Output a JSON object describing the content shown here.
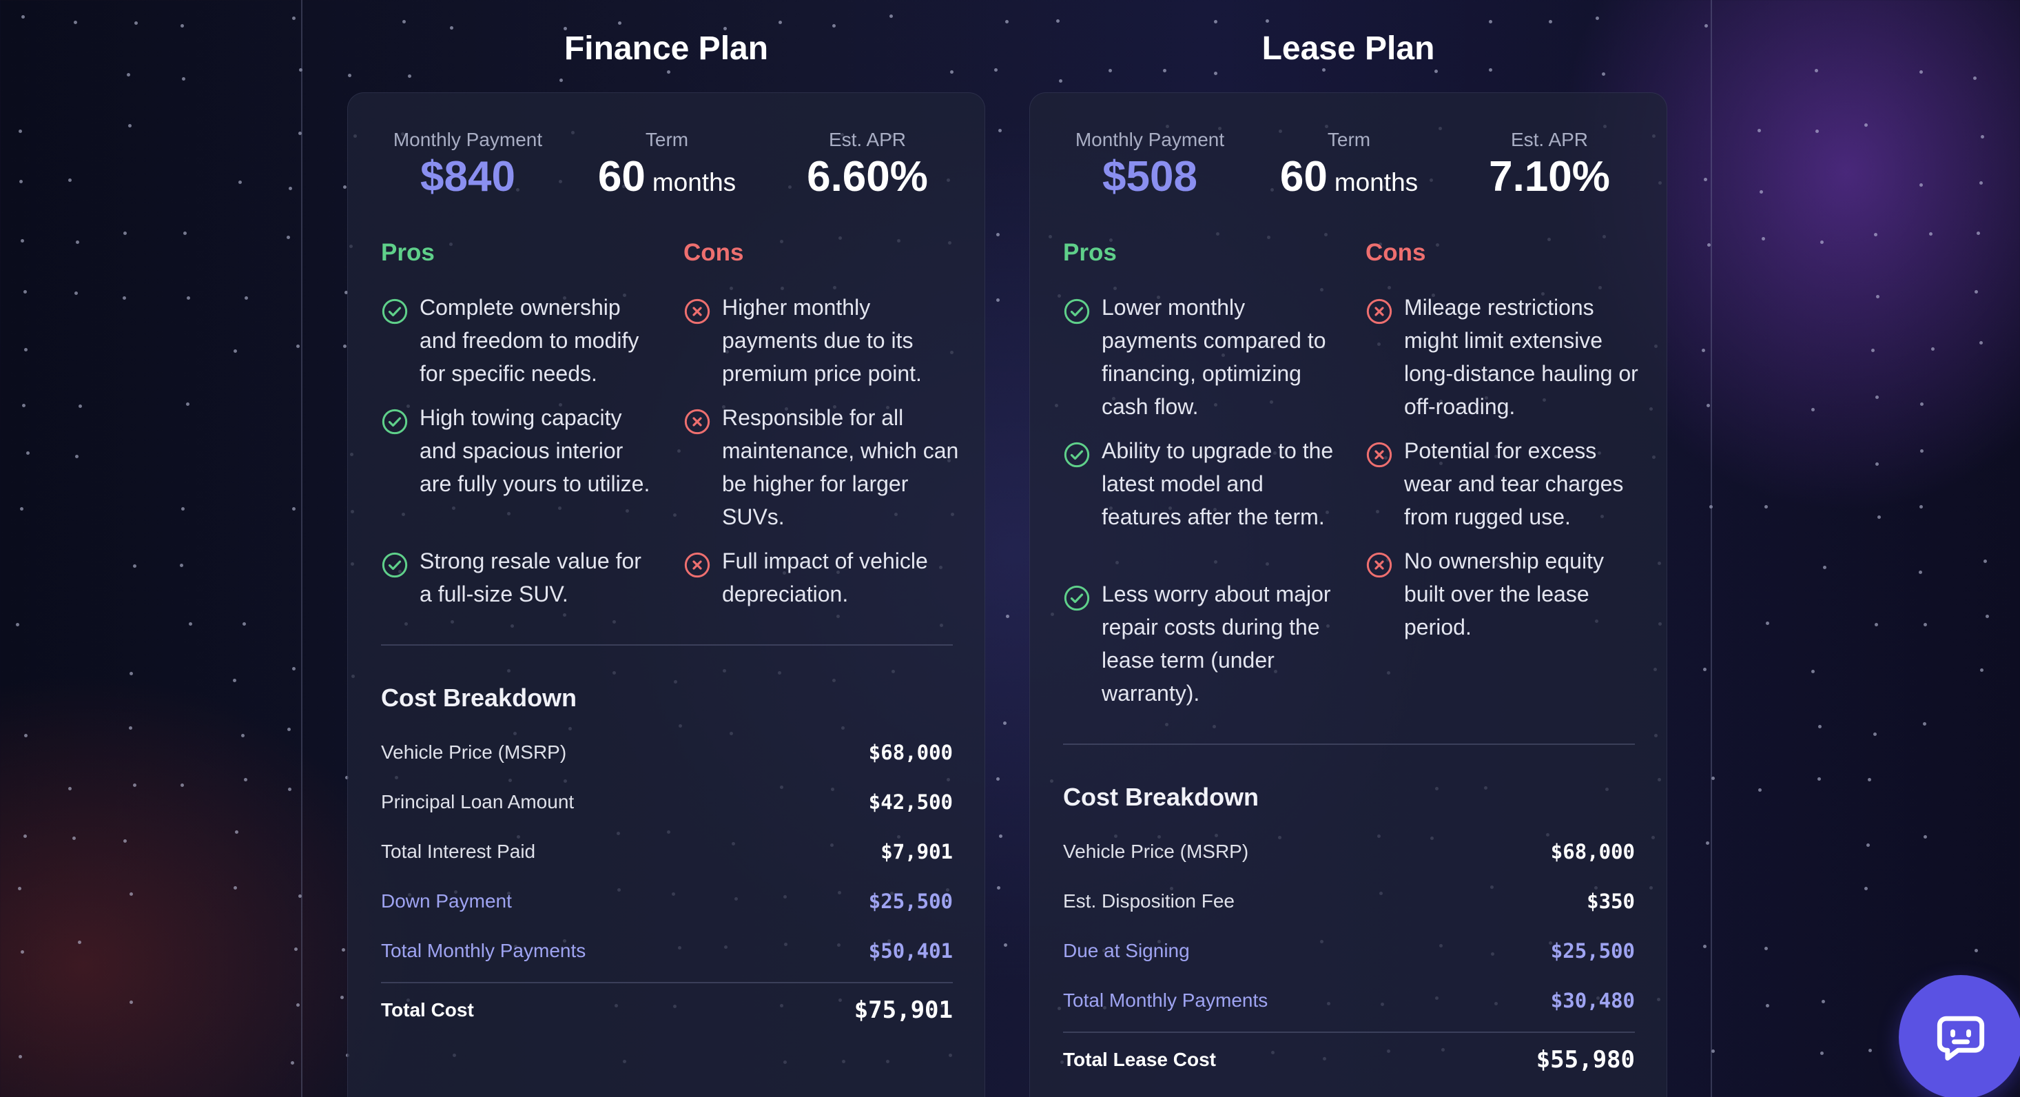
{
  "plans": [
    {
      "title": "Finance Plan",
      "stats": [
        {
          "label": "Monthly Payment",
          "value": "$840",
          "unit": ""
        },
        {
          "label": "Term",
          "value": "60",
          "unit": "months"
        },
        {
          "label": "Est. APR",
          "value": "6.60%",
          "unit": ""
        }
      ],
      "pros_heading": "Pros",
      "cons_heading": "Cons",
      "pros": [
        "Complete ownership and freedom to modify for specific needs.",
        "High towing capacity and spacious interior are fully yours to utilize.",
        "Strong resale value for a full-size SUV."
      ],
      "cons": [
        "Higher monthly payments due to its premium price point.",
        "Responsible for all maintenance, which can be higher for larger SUVs.",
        "Full impact of vehicle depreciation."
      ],
      "cost_title": "Cost Breakdown",
      "rows": [
        {
          "label": "Vehicle Price (MSRP)",
          "value": "$68,000"
        },
        {
          "label": "Principal Loan Amount",
          "value": "$42,500"
        },
        {
          "label": "Total Interest Paid",
          "value": "$7,901"
        },
        {
          "label": "Down Payment",
          "value": "$25,500"
        },
        {
          "label": "Total Monthly Payments",
          "value": "$50,401"
        }
      ],
      "total": {
        "label": "Total Cost",
        "value": "$75,901"
      }
    },
    {
      "title": "Lease Plan",
      "stats": [
        {
          "label": "Monthly Payment",
          "value": "$508",
          "unit": ""
        },
        {
          "label": "Term",
          "value": "60",
          "unit": "months"
        },
        {
          "label": "Est. APR",
          "value": "7.10%",
          "unit": ""
        }
      ],
      "pros_heading": "Pros",
      "cons_heading": "Cons",
      "pros": [
        "Lower monthly payments compared to financing, optimizing cash flow.",
        "Ability to upgrade to the latest model and features after the term.",
        "Less worry about major repair costs during the lease term (under warranty)."
      ],
      "cons": [
        "Mileage restrictions might limit extensive long-distance hauling or off-roading.",
        "Potential for excess wear and tear charges from rugged use.",
        "No ownership equity built over the lease period."
      ],
      "cost_title": "Cost Breakdown",
      "rows": [
        {
          "label": "Vehicle Price (MSRP)",
          "value": "$68,000"
        },
        {
          "label": "Est. Disposition Fee",
          "value": "$350"
        },
        {
          "label": "Due at Signing",
          "value": "$25,500"
        },
        {
          "label": "Total Monthly Payments",
          "value": "$30,480"
        }
      ],
      "total": {
        "label": "Total Lease Cost",
        "value": "$55,980"
      }
    }
  ],
  "colors": {
    "accent": "#8a8ff0",
    "pros": "#5fd08a",
    "cons": "#ee6f6f",
    "highlight_row": "#9fa4f2",
    "chat_button": "#5a52e3"
  },
  "icons": {
    "pro": "check-circle-icon",
    "con": "x-circle-icon",
    "chat": "chat-bot-icon"
  }
}
